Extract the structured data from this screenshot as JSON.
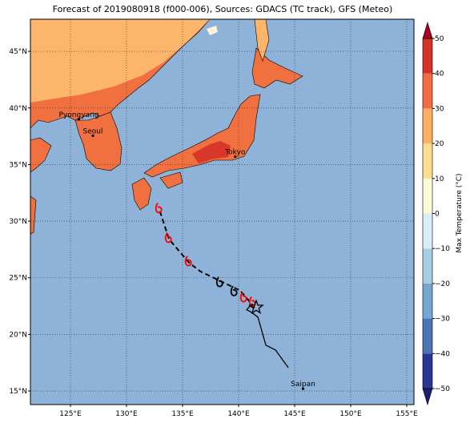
{
  "map": {
    "title": "Forecast of 2019080918 (f000-006), Sources: GDACS (TC track), GFS (Meteo)",
    "lonlim": [
      121.43,
      155.64
    ],
    "latlim": [
      13.8,
      47.84
    ],
    "lon_ticks": [
      {
        "value": 125,
        "label": "125°E"
      },
      {
        "value": 130,
        "label": "130°E"
      },
      {
        "value": 135,
        "label": "135°E"
      },
      {
        "value": 140,
        "label": "140°E"
      },
      {
        "value": 145,
        "label": "145°E"
      },
      {
        "value": 150,
        "label": "150°E"
      },
      {
        "value": 155,
        "label": "155°E"
      }
    ],
    "lat_ticks": [
      {
        "value": 15,
        "label": "15°N"
      },
      {
        "value": 20,
        "label": "20°N"
      },
      {
        "value": 25,
        "label": "25°N"
      },
      {
        "value": 30,
        "label": "30°N"
      },
      {
        "value": 35,
        "label": "35°N"
      },
      {
        "value": 40,
        "label": "40°N"
      },
      {
        "value": 45,
        "label": "45°N"
      }
    ],
    "cities": [
      {
        "name": "Pyongyang",
        "lon": 125.75,
        "lat": 39.0
      },
      {
        "name": "Seoul",
        "lon": 127.0,
        "lat": 37.55
      },
      {
        "name": "Tokyo",
        "lon": 139.7,
        "lat": 35.7
      },
      {
        "name": "Saipan",
        "lon": 145.75,
        "lat": 15.2
      }
    ],
    "track_observed": {
      "lon": [
        144.43,
        143.29,
        142.43,
        141.72,
        141.14,
        140.72,
        141.0,
        141.43
      ],
      "lat": [
        17.06,
        18.62,
        19.05,
        21.53,
        21.95,
        22.17,
        22.5,
        22.38
      ]
    },
    "track_forecast": {
      "lon": [
        141.43,
        140.14,
        138.36,
        136.57,
        135.57,
        133.79,
        132.93
      ],
      "lat": [
        22.38,
        23.87,
        24.72,
        25.57,
        26.35,
        28.41,
        31.03
      ]
    },
    "storm_symbols": [
      {
        "lon": 132.93,
        "lat": 31.03,
        "color": "#ff0000"
      },
      {
        "lon": 133.79,
        "lat": 28.41,
        "color": "#ff0000"
      },
      {
        "lon": 135.57,
        "lat": 26.35,
        "color": "#ff0000"
      },
      {
        "lon": 138.36,
        "lat": 24.5,
        "color": "#000000"
      },
      {
        "lon": 139.64,
        "lat": 23.7,
        "color": "#000000"
      },
      {
        "lon": 140.5,
        "lat": 23.16,
        "color": "#ff0000"
      },
      {
        "lon": 141.29,
        "lat": 22.75,
        "color": "#ff0000"
      }
    ],
    "current_position": {
      "lon": 141.57,
      "lat": 22.38
    },
    "colorbar": {
      "label": "Max Temperature (°C)",
      "lim": [
        -50,
        50
      ],
      "ticks": [
        {
          "value": -50,
          "label": "−50"
        },
        {
          "value": -40,
          "label": "−40"
        },
        {
          "value": -30,
          "label": "−30"
        },
        {
          "value": -20,
          "label": "−20"
        },
        {
          "value": -10,
          "label": "−10"
        },
        0,
        10,
        20,
        30,
        40,
        50
      ],
      "colors": [
        "#2b3594",
        "#4a74b4",
        "#74a6cf",
        "#a7cde3",
        "#d9edf4",
        "#fefcd6",
        "#fedc8f",
        "#fdae61",
        "#f26d43",
        "#d4322a"
      ],
      "under_color": "#1b1f6e",
      "over_color": "#a50026"
    }
  }
}
